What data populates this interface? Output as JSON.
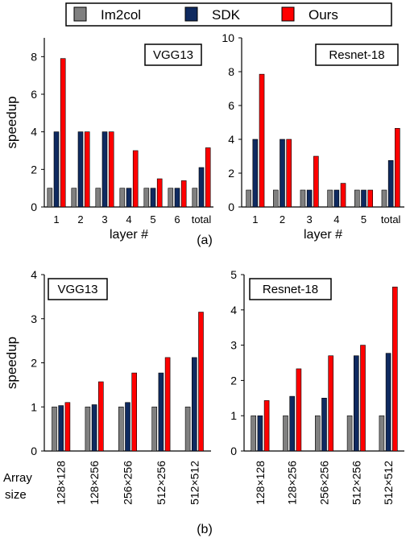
{
  "figure": {
    "subfig_a_label": "(a)",
    "subfig_b_label": "(b)",
    "array_size_label_line1": "Array",
    "array_size_label_line2": "size"
  },
  "legend": [
    {
      "name": "Im2col",
      "color": "#808080"
    },
    {
      "name": "SDK",
      "color": "#0f2a60"
    },
    {
      "name": "Ours",
      "color": "#ff0000"
    }
  ],
  "chart_data": [
    {
      "type": "bar",
      "panel": "a-left",
      "title": "VGG13",
      "xlabel": "layer #",
      "ylabel": "speedup",
      "ylim": [
        0,
        9
      ],
      "yticks": [
        0,
        2,
        4,
        6,
        8
      ],
      "categories": [
        "1",
        "2",
        "3",
        "4",
        "5",
        "6",
        "total"
      ],
      "series": [
        {
          "name": "Im2col",
          "values": [
            1,
            1,
            1,
            1,
            1,
            1,
            1
          ]
        },
        {
          "name": "SDK",
          "values": [
            4,
            4,
            4,
            1,
            1,
            1,
            2.1
          ]
        },
        {
          "name": "Ours",
          "values": [
            7.9,
            4,
            4,
            3,
            1.5,
            1.4,
            3.15
          ]
        }
      ]
    },
    {
      "type": "bar",
      "panel": "a-right",
      "title": "Resnet-18",
      "xlabel": "layer #",
      "ylabel": "",
      "ylim": [
        0,
        10
      ],
      "yticks": [
        0,
        2,
        4,
        6,
        8,
        10
      ],
      "categories": [
        "1",
        "2",
        "3",
        "4",
        "5",
        "total"
      ],
      "series": [
        {
          "name": "Im2col",
          "values": [
            1,
            1,
            1,
            1,
            1,
            1
          ]
        },
        {
          "name": "SDK",
          "values": [
            4,
            4,
            1,
            1,
            1,
            2.75
          ]
        },
        {
          "name": "Ours",
          "values": [
            7.85,
            4,
            3,
            1.4,
            1,
            4.65
          ]
        }
      ]
    },
    {
      "type": "bar",
      "panel": "b-left",
      "title": "VGG13",
      "xlabel": "",
      "ylabel": "speedup",
      "ylim": [
        0,
        4
      ],
      "yticks": [
        0,
        1,
        2,
        3,
        4
      ],
      "categories": [
        "128×128",
        "128×256",
        "256×256",
        "512×256",
        "512×512"
      ],
      "series": [
        {
          "name": "Im2col",
          "values": [
            1,
            1,
            1,
            1,
            1
          ]
        },
        {
          "name": "SDK",
          "values": [
            1.03,
            1.05,
            1.1,
            1.77,
            2.12
          ]
        },
        {
          "name": "Ours",
          "values": [
            1.1,
            1.57,
            1.77,
            2.12,
            3.15
          ]
        }
      ]
    },
    {
      "type": "bar",
      "panel": "b-right",
      "title": "Resnet-18",
      "xlabel": "",
      "ylabel": "",
      "ylim": [
        0,
        5
      ],
      "yticks": [
        0,
        1,
        2,
        3,
        4,
        5
      ],
      "categories": [
        "128×128",
        "128×256",
        "256×256",
        "512×256",
        "512×512"
      ],
      "series": [
        {
          "name": "Im2col",
          "values": [
            1,
            1,
            1,
            1,
            1
          ]
        },
        {
          "name": "SDK",
          "values": [
            1,
            1.55,
            1.5,
            2.7,
            2.77
          ]
        },
        {
          "name": "Ours",
          "values": [
            1.43,
            2.33,
            2.7,
            3,
            4.65
          ]
        }
      ]
    }
  ]
}
